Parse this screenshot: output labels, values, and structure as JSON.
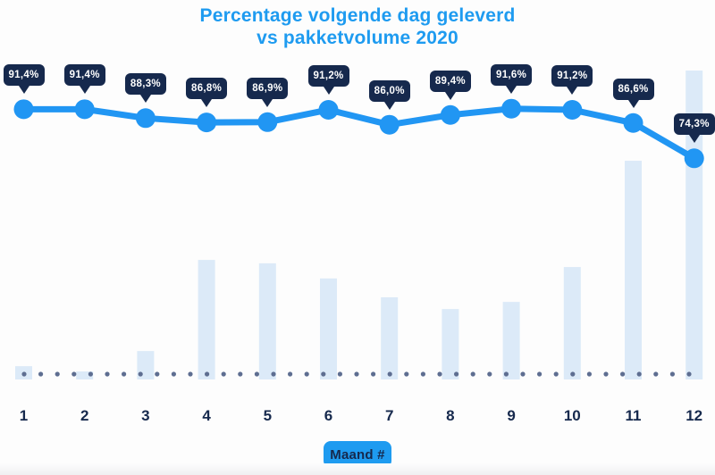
{
  "title": {
    "line1": "Percentage volgende dag geleverd",
    "line2": "vs pakketvolume 2020"
  },
  "x_axis": {
    "title": "Maand #",
    "ticks": [
      "1",
      "2",
      "3",
      "4",
      "5",
      "6",
      "7",
      "8",
      "9",
      "10",
      "11",
      "12"
    ]
  },
  "chart_data": [
    {
      "type": "line",
      "name": "Percentage volgende dag geleverd",
      "x": [
        1,
        2,
        3,
        4,
        5,
        6,
        7,
        8,
        9,
        10,
        11,
        12
      ],
      "values": [
        91.4,
        91.4,
        88.3,
        86.8,
        86.9,
        91.2,
        86.0,
        89.4,
        91.6,
        91.2,
        86.6,
        74.3
      ],
      "point_labels": [
        "91,4%",
        "91,4%",
        "88,3%",
        "86,8%",
        "86,9%",
        "91,2%",
        "86,0%",
        "89,4%",
        "91,6%",
        "91,2%",
        "86,6%",
        "74,3%"
      ],
      "data_labels_visible": true,
      "legend": "none",
      "grid": false
    },
    {
      "type": "bar",
      "name": "Pakketvolume 2020",
      "x": [
        1,
        2,
        3,
        4,
        5,
        6,
        7,
        8,
        9,
        10,
        11,
        12
      ],
      "values_relative_to_max_pct": [
        4.3,
        2.6,
        9.2,
        38.7,
        37.6,
        32.7,
        26.6,
        22.8,
        25.1,
        36.4,
        70.8,
        100
      ],
      "note": "no numeric y-axis shown; values estimated from bar heights relative to tallest bar (month 12)"
    }
  ],
  "baseline": {
    "style": "dotted",
    "dot_count": 41
  },
  "colors": {
    "title_blue": "#1E9BF0",
    "line_blue": "#2196F3",
    "bubble_navy": "#16294D",
    "bar_fill": "#DCEAF8",
    "dot_gray_blue": "#5E6E91",
    "axis_navy": "#16294D",
    "x_axis_box_blue": "#1E9BF0",
    "background": "#FDFDFD"
  }
}
